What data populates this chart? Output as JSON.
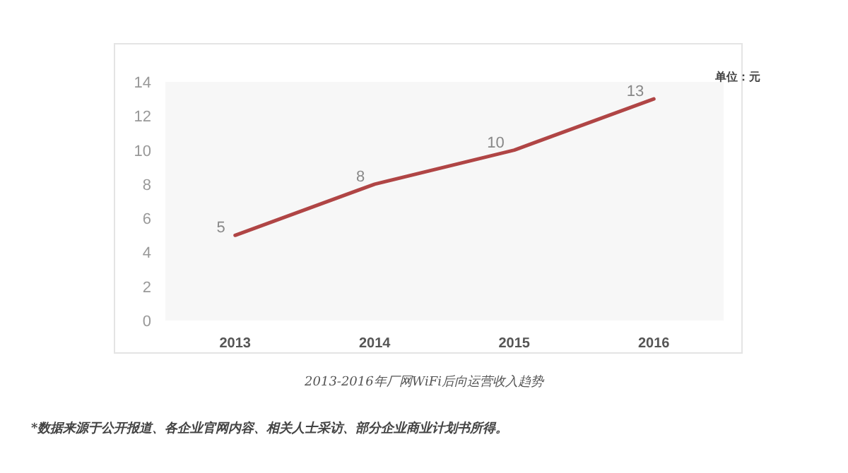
{
  "chart_data": {
    "type": "line",
    "title": "2013-2016年厂网WiFi后向运营收入趋势",
    "categories": [
      "2013",
      "2014",
      "2015",
      "2016"
    ],
    "series": [
      {
        "color": "#b04545",
        "values": [
          5,
          8,
          10,
          13
        ]
      }
    ],
    "ylim": [
      0,
      14
    ],
    "yticks": [
      0,
      2,
      4,
      6,
      8,
      10,
      12,
      14
    ],
    "data_labels": true,
    "marker": "none",
    "line_style": "solid",
    "annotations": [
      "单位：元",
      "*数据来源于公开报道、各企业官网内容、相关人士采访、部分企业商业计划书所得。"
    ]
  }
}
